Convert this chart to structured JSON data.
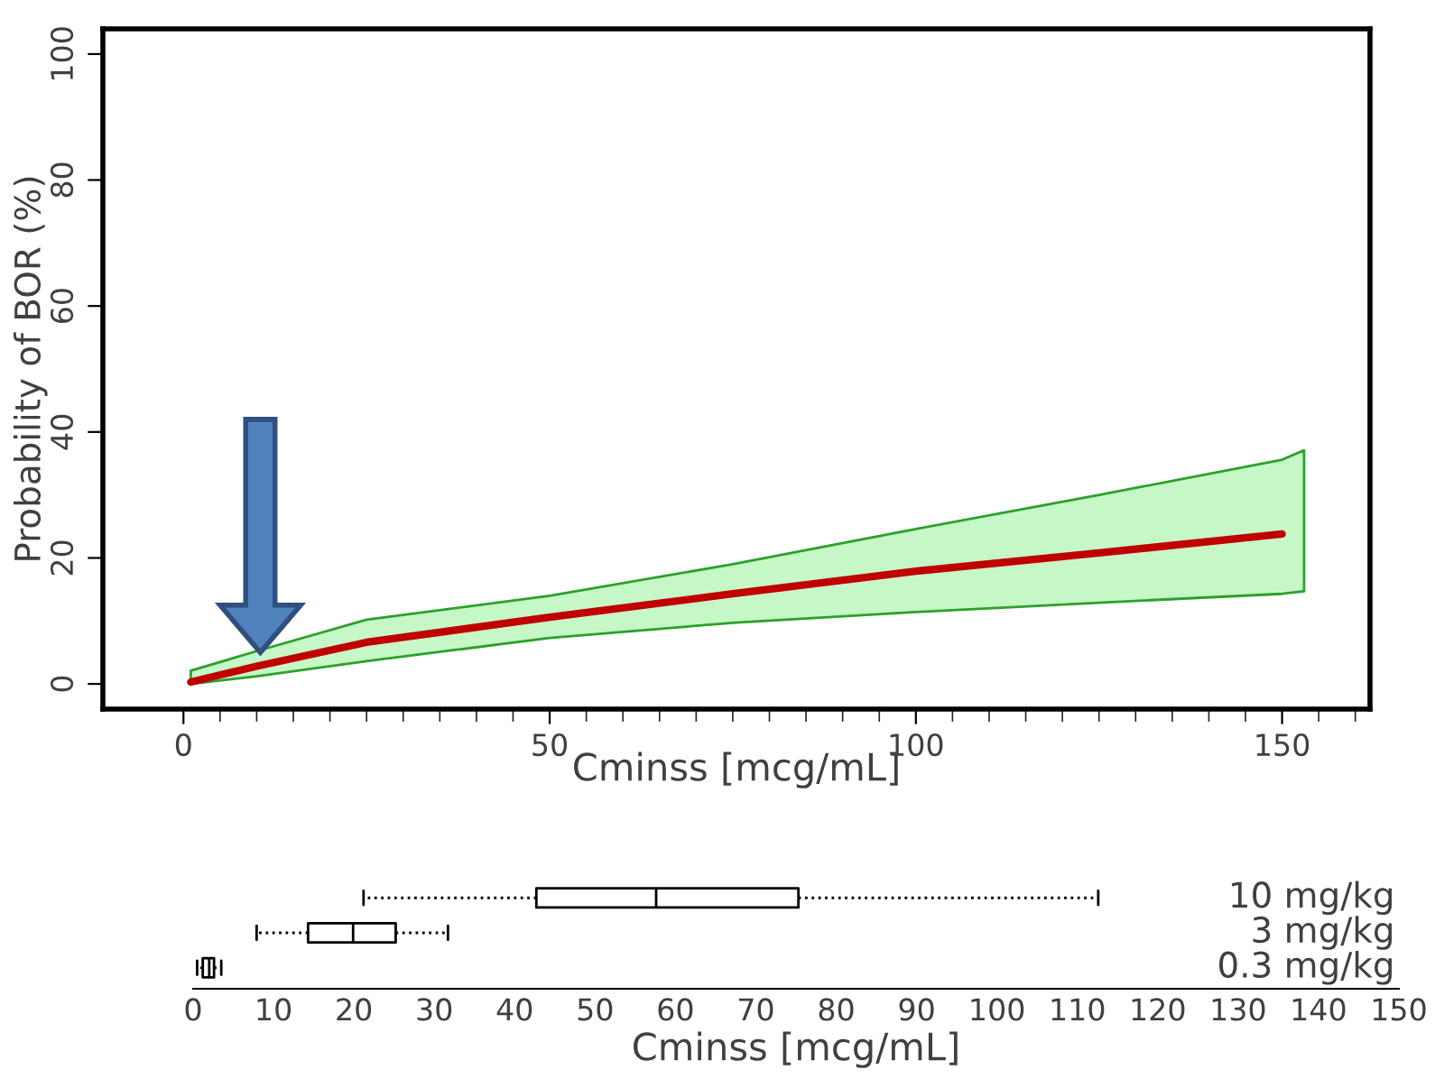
{
  "chart_data": [
    {
      "type": "line",
      "xlabel": "Cminss [mcg/mL]",
      "ylabel": "Probability of BOR (%)",
      "x": [
        1,
        10,
        25,
        50,
        75,
        100,
        125,
        150,
        153
      ],
      "series": [
        {
          "color": "#c00000",
          "values": [
            0.3,
            2.8,
            6.6,
            10.6,
            14.3,
            17.9,
            20.8,
            23.8,
            null
          ],
          "lower": [
            0,
            1.2,
            3.6,
            7.3,
            9.7,
            11.4,
            12.9,
            14.3,
            14.7
          ],
          "upper": [
            2.1,
            5.2,
            10.2,
            14,
            19,
            24.6,
            30,
            35.6,
            37.1
          ]
        }
      ],
      "xlim": [
        -11,
        162
      ],
      "ylim": [
        -4,
        104
      ],
      "xticks": [
        0,
        50,
        100,
        150
      ],
      "yticks": [
        0,
        20,
        40,
        60,
        80,
        100
      ],
      "grid": false,
      "marker": "none",
      "line_style": "solid"
    },
    {
      "type": "box",
      "orientation": "horizontal",
      "xlabel": "Cminss [mcg/mL]",
      "categories": [
        "10 mg/kg",
        "3 mg/kg",
        "0.3 mg/kg"
      ],
      "boxes": [
        {
          "low": 21.2,
          "q1": 42.7,
          "median": 57.6,
          "q3": 75.3,
          "high": 112.6
        },
        {
          "low": 7.9,
          "q1": 14.3,
          "median": 19.9,
          "q3": 25.2,
          "high": 31.7
        },
        {
          "low": 0.5,
          "q1": 1.2,
          "median": 2,
          "q3": 2.6,
          "high": 3.5
        }
      ],
      "xlim": [
        0,
        150
      ],
      "xticks": [
        0,
        10,
        20,
        30,
        40,
        50,
        60,
        70,
        80,
        90,
        100,
        110,
        120,
        130,
        140,
        150
      ],
      "grid": false
    }
  ]
}
